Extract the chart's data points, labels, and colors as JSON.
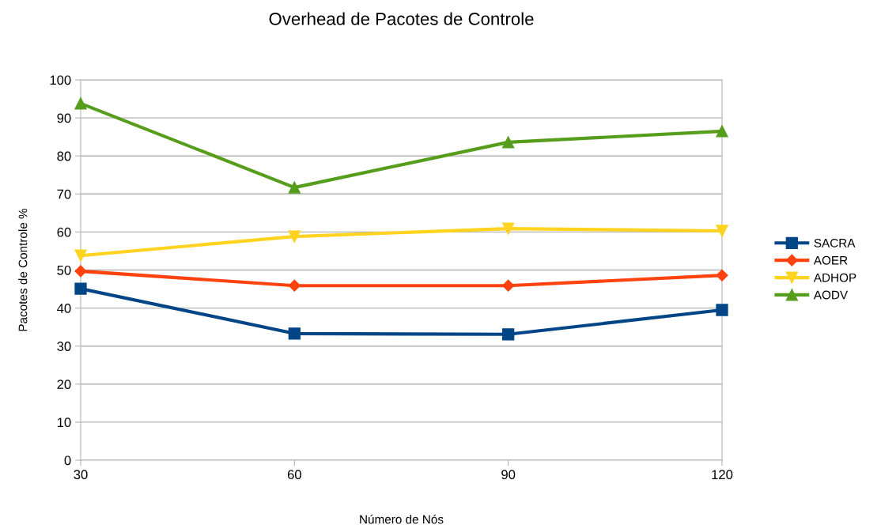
{
  "chart_data": {
    "type": "line",
    "title": "Overhead de Pacotes de Controle",
    "xlabel": "Número de Nós",
    "ylabel": "Pacotes de Controle %",
    "x": [
      30,
      60,
      90,
      120
    ],
    "series": [
      {
        "name": "SACRA",
        "color": "#004586",
        "marker": "square",
        "values": [
          45.1,
          33.3,
          33.1,
          39.5
        ]
      },
      {
        "name": "AOER",
        "color": "#ff420e",
        "marker": "diamond",
        "values": [
          49.7,
          45.9,
          45.9,
          48.6
        ]
      },
      {
        "name": "ADHOP",
        "color": "#ffd320",
        "marker": "triangle-down",
        "values": [
          53.8,
          58.8,
          60.9,
          60.3
        ]
      },
      {
        "name": "AODV",
        "color": "#579d1c",
        "marker": "triangle",
        "values": [
          93.8,
          71.7,
          83.6,
          86.5
        ]
      }
    ],
    "xlim": [
      30,
      120
    ],
    "xticks": [
      30,
      60,
      90,
      120
    ],
    "ylim": [
      0,
      100
    ],
    "yticks": [
      0,
      10,
      20,
      30,
      40,
      50,
      60,
      70,
      80,
      90,
      100
    ],
    "grid": "y",
    "legend": "right",
    "line_style": "solid"
  }
}
